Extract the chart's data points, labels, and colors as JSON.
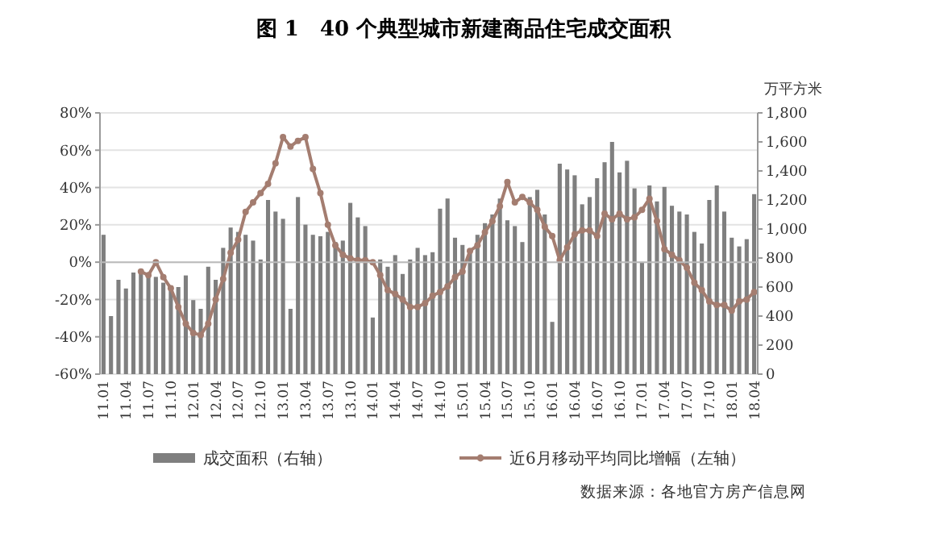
{
  "chart_data": {
    "type": "bar",
    "title": "图 1　40 个典型城市新建商品住宅成交面积",
    "y2label": "万平方米",
    "categories": [
      "11.01",
      null,
      null,
      "11.04",
      null,
      null,
      "11.07",
      null,
      null,
      "11.10",
      null,
      null,
      "12.01",
      null,
      null,
      "12.04",
      null,
      null,
      "12.07",
      null,
      null,
      "12.10",
      null,
      null,
      "13.01",
      null,
      null,
      "13.04",
      null,
      null,
      "13.07",
      null,
      null,
      "13.10",
      null,
      null,
      "14.01",
      null,
      null,
      "14.04",
      null,
      null,
      "14.07",
      null,
      null,
      "14.10",
      null,
      null,
      "15.01",
      null,
      null,
      "15.04",
      null,
      null,
      "15.07",
      null,
      null,
      "15.10",
      null,
      null,
      "16.01",
      null,
      null,
      "16.04",
      null,
      null,
      "16.07",
      null,
      null,
      "16.10",
      null,
      null,
      "17.01",
      null,
      null,
      "17.04",
      null,
      null,
      "17.07",
      null,
      null,
      "17.10",
      null,
      null,
      "18.01",
      null,
      null,
      "18.04"
    ],
    "series": [
      {
        "name": "成交面积（右轴）",
        "axis": "y2",
        "color": "#7f7f7f",
        "values": [
          960,
          400,
          650,
          590,
          700,
          690,
          690,
          670,
          630,
          610,
          600,
          680,
          510,
          450,
          740,
          650,
          870,
          1010,
          980,
          960,
          920,
          790,
          1200,
          1120,
          1070,
          450,
          1220,
          1030,
          960,
          950,
          980,
          910,
          920,
          1180,
          1080,
          1020,
          390,
          790,
          740,
          820,
          690,
          790,
          870,
          820,
          840,
          1140,
          1210,
          940,
          890,
          850,
          960,
          1040,
          1100,
          1210,
          1060,
          1020,
          910,
          1220,
          1270,
          1100,
          360,
          1450,
          1410,
          1370,
          1170,
          1220,
          1350,
          1460,
          1600,
          1390,
          1470,
          1280,
          770,
          1300,
          1190,
          1290,
          1160,
          1120,
          1100,
          980,
          900,
          1200,
          1300,
          1120,
          940,
          880,
          930,
          1240
        ]
      },
      {
        "name": "近6月移动平均同比增幅（左轴）",
        "type": "line",
        "axis": "y",
        "color": "#a47d70",
        "marker": "circle",
        "values": [
          null,
          null,
          null,
          null,
          null,
          -5,
          -7,
          0,
          -8,
          -14,
          -24,
          -33,
          -38,
          -39,
          -33,
          -20,
          -9,
          5,
          12,
          27,
          32,
          37,
          42,
          53,
          67,
          62,
          65,
          67,
          50,
          37,
          20,
          9,
          4,
          2,
          1,
          1,
          0,
          -7,
          -15,
          -17,
          -20,
          -24,
          -24,
          -22,
          -18,
          -16,
          -13,
          -8,
          -5,
          6,
          9,
          16,
          22,
          30,
          43,
          32,
          35,
          32,
          28,
          19,
          14,
          1,
          8,
          15,
          17,
          17,
          14,
          26,
          23,
          26,
          23,
          24,
          28,
          34,
          22,
          7,
          4,
          1,
          -3,
          -11,
          -15,
          -21,
          -23,
          -23,
          -26,
          -21,
          -20,
          -16
        ]
      }
    ],
    "ylim": [
      -60,
      80
    ],
    "yticks": [
      {
        "value": -60,
        "label": "-60%"
      },
      {
        "value": -40,
        "label": "-40%"
      },
      {
        "value": -20,
        "label": "-20%"
      },
      {
        "value": 0,
        "label": "0%"
      },
      {
        "value": 20,
        "label": "20%"
      },
      {
        "value": 40,
        "label": "40%"
      },
      {
        "value": 60,
        "label": "60%"
      },
      {
        "value": 80,
        "label": "80%"
      }
    ],
    "y2lim": [
      0,
      1800
    ],
    "y2ticks": [
      0,
      200,
      400,
      600,
      800,
      {
        "value": 1000,
        "label": "1,000"
      },
      {
        "value": 1200,
        "label": "1,200"
      },
      {
        "value": 1400,
        "label": "1,400"
      },
      {
        "value": 1600,
        "label": "1,600"
      },
      {
        "value": 1800,
        "label": "1,800"
      }
    ],
    "grid": "y",
    "legend": "bottom",
    "annotations": [
      "数据来源：各地官方房产信息网"
    ]
  }
}
